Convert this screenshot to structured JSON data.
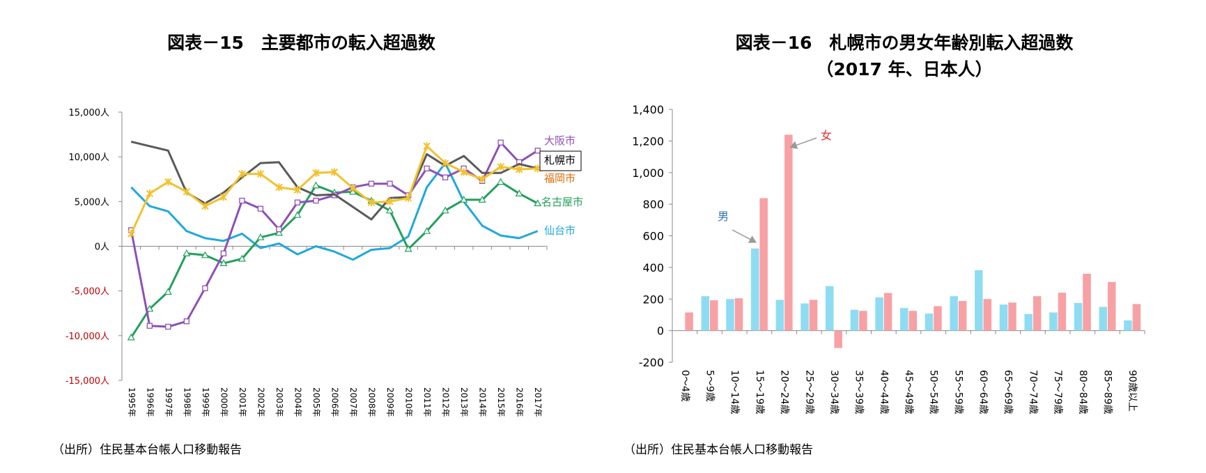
{
  "left": {
    "title": "図表－15　主要都市の転入超過数",
    "source": "（出所）住民基本台帳人口移動報告"
  },
  "right": {
    "title_line1": "図表－16　札幌市の男女年齢別転入超過数",
    "title_line2": "（2017 年、日本人）",
    "source": "（出所）住民基本台帳人口移動報告"
  },
  "colors": {
    "osaka": "#8E4FB5",
    "sapporo": "#595959",
    "fukuoka": "#F2C12E",
    "nagoya": "#21A05A",
    "sendai": "#1FA8DD",
    "male": "#8EDCF2",
    "female": "#F7A1A4",
    "negative_tick": "#C00000",
    "fukuoka_label": "#E36C0A"
  },
  "chart_data": [
    {
      "type": "line",
      "ylim": [
        -15000,
        15000
      ],
      "yticks": [
        15000,
        10000,
        5000,
        0,
        -5000,
        -10000,
        -15000
      ],
      "ytick_labels": [
        "15,000人",
        "10,000人",
        "5,000人",
        "0人",
        "-5,000人",
        "-10,000人",
        "-15,000人"
      ],
      "x": [
        "1995年",
        "1996年",
        "1997年",
        "1998年",
        "1999年",
        "2000年",
        "2001年",
        "2002年",
        "2003年",
        "2004年",
        "2005年",
        "2006年",
        "2007年",
        "2008年",
        "2009年",
        "2010年",
        "2011年",
        "2012年",
        "2013年",
        "2014年",
        "2015年",
        "2016年",
        "2017年"
      ],
      "series": [
        {
          "name": "大阪市",
          "key": "osaka",
          "marker": "square",
          "values": [
            1800,
            -8900,
            -9000,
            -8400,
            -4700,
            -800,
            5100,
            4200,
            1900,
            4900,
            5100,
            5700,
            6600,
            7000,
            7000,
            5700,
            8700,
            7700,
            8700,
            7300,
            11600,
            9400,
            10700
          ]
        },
        {
          "name": "札幌市",
          "key": "sapporo",
          "marker": "none",
          "values": [
            11700,
            11200,
            10700,
            6000,
            4800,
            6000,
            7700,
            9300,
            9400,
            6600,
            5700,
            5800,
            4400,
            3000,
            5400,
            5500,
            10300,
            9000,
            10100,
            8200,
            8200,
            9200,
            8700
          ]
        },
        {
          "name": "福岡市",
          "key": "fukuoka",
          "marker": "star",
          "values": [
            1400,
            5900,
            7200,
            6100,
            4500,
            5500,
            8100,
            8100,
            6600,
            6300,
            8200,
            8300,
            6500,
            4900,
            5000,
            5400,
            11200,
            9300,
            8300,
            7500,
            8900,
            8600,
            8700
          ]
        },
        {
          "name": "名古屋市",
          "key": "nagoya",
          "marker": "triangle",
          "values": [
            -10200,
            -7000,
            -5100,
            -800,
            -1000,
            -1900,
            -1400,
            1000,
            1500,
            3500,
            6800,
            6000,
            6100,
            5100,
            4000,
            -300,
            1700,
            4000,
            5200,
            5200,
            7200,
            5900,
            4800
          ]
        },
        {
          "name": "仙台市",
          "key": "sendai",
          "marker": "none",
          "values": [
            6600,
            4500,
            3900,
            1700,
            900,
            600,
            1400,
            -200,
            300,
            -900,
            0,
            -600,
            -1500,
            -400,
            -200,
            1100,
            6600,
            9300,
            5000,
            2300,
            1200,
            900,
            1700
          ]
        }
      ]
    },
    {
      "type": "bar",
      "ylim": [
        -200,
        1400
      ],
      "yticks": [
        1400,
        1200,
        1000,
        800,
        600,
        400,
        200,
        0,
        -200
      ],
      "ytick_labels": [
        "1,400",
        "1,200",
        "1,000",
        "800",
        "600",
        "400",
        "200",
        "0",
        "-200"
      ],
      "categories": [
        "0～4歳",
        "5～9歳",
        "10～14歳",
        "15～19歳",
        "20～24歳",
        "25～29歳",
        "30～34歳",
        "35～39歳",
        "40～44歳",
        "45～49歳",
        "50～54歳",
        "55～59歳",
        "60～64歳",
        "65～69歳",
        "70～74歳",
        "75～79歳",
        "80～84歳",
        "85～89歳",
        "90歳以上"
      ],
      "series": [
        {
          "name": "男",
          "key": "male",
          "values": [
            0,
            218,
            200,
            520,
            195,
            172,
            282,
            132,
            210,
            143,
            108,
            218,
            382,
            165,
            105,
            115,
            175,
            150,
            65
          ]
        },
        {
          "name": "女",
          "key": "female",
          "values": [
            115,
            192,
            205,
            838,
            1240,
            195,
            -110,
            125,
            238,
            125,
            155,
            188,
            200,
            178,
            218,
            240,
            360,
            308,
            168
          ]
        }
      ]
    }
  ]
}
